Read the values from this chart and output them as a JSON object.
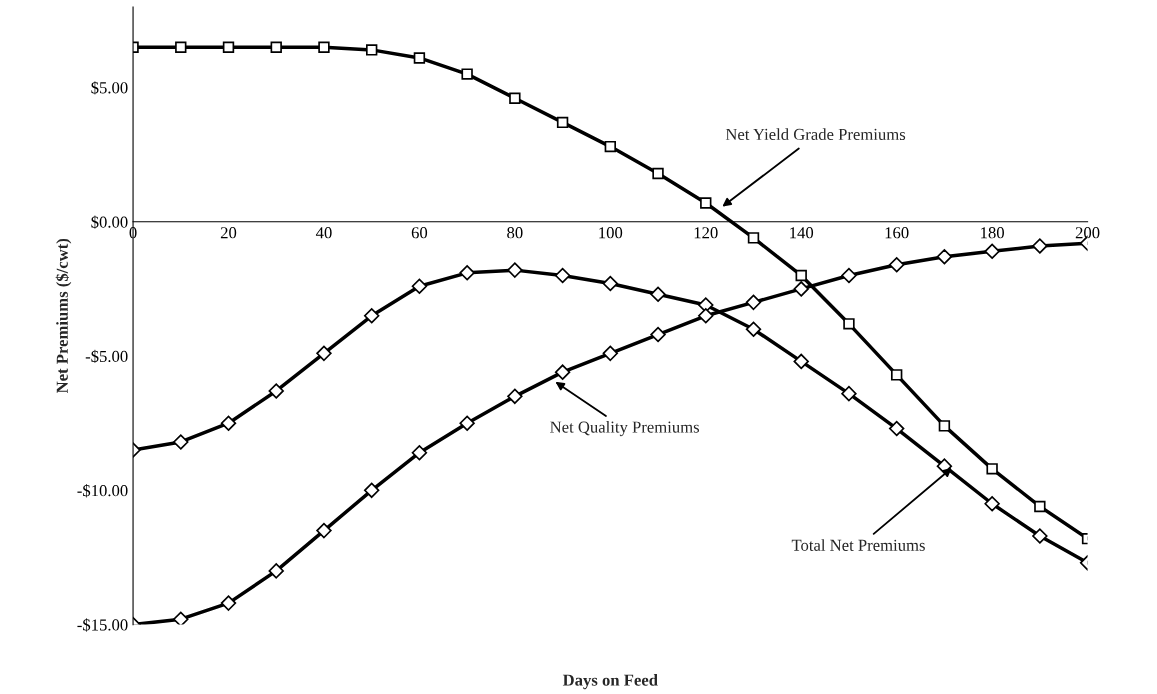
{
  "chart_data": {
    "type": "line",
    "xlabel": "Days on Feed",
    "ylabel": "Net Premiums ($/cwt)",
    "x": [
      0,
      10,
      20,
      30,
      40,
      50,
      60,
      70,
      80,
      90,
      100,
      110,
      120,
      130,
      140,
      150,
      160,
      170,
      180,
      190,
      200
    ],
    "xlim": [
      0,
      200
    ],
    "xticks": [
      0,
      20,
      40,
      60,
      80,
      100,
      120,
      140,
      160,
      180,
      200
    ],
    "ylim": [
      -15,
      8
    ],
    "yticks": [
      {
        "value": 5,
        "label": "$5.00"
      },
      {
        "value": 0,
        "label": "$0.00"
      },
      {
        "value": -5,
        "label": "-$5.00"
      },
      {
        "value": -10,
        "label": "-$10.00"
      },
      {
        "value": -15,
        "label": "-$15.00"
      }
    ],
    "grid": false,
    "legend": false,
    "series": [
      {
        "color": "#000000",
        "marker": "square",
        "values": [
          6.5,
          6.5,
          6.5,
          6.5,
          6.5,
          6.4,
          6.1,
          5.5,
          4.6,
          3.7,
          2.8,
          1.8,
          0.7,
          -0.6,
          -2.0,
          -3.8,
          -5.7,
          -7.6,
          -9.2,
          -10.6,
          -11.8
        ]
      },
      {
        "color": "#000000",
        "marker": "diamond",
        "values": [
          -8.5,
          -8.2,
          -7.5,
          -6.3,
          -4.9,
          -3.5,
          -2.4,
          -1.9,
          -1.8,
          -2.0,
          -2.3,
          -2.7,
          -3.1,
          -4.0,
          -5.2,
          -6.4,
          -7.7,
          -9.1,
          -10.5,
          -11.7,
          -12.7
        ]
      },
      {
        "color": "#000000",
        "marker": "diamond",
        "values": [
          -15.0,
          -14.8,
          -14.2,
          -13.0,
          -11.5,
          -10.0,
          -8.6,
          -7.5,
          -6.5,
          -5.6,
          -4.9,
          -4.2,
          -3.5,
          -3.0,
          -2.5,
          -2.0,
          -1.6,
          -1.3,
          -1.1,
          -0.9,
          -0.8
        ]
      }
    ],
    "annotations": [
      {
        "text": "Net Yield Grade Premiums",
        "x": 123,
        "y": 0.5
      },
      {
        "text": "Net Quality Premiums",
        "x": 88,
        "y": -5.9
      },
      {
        "text": "Total Net Premiums",
        "x": 172,
        "y": -9.1
      }
    ]
  }
}
